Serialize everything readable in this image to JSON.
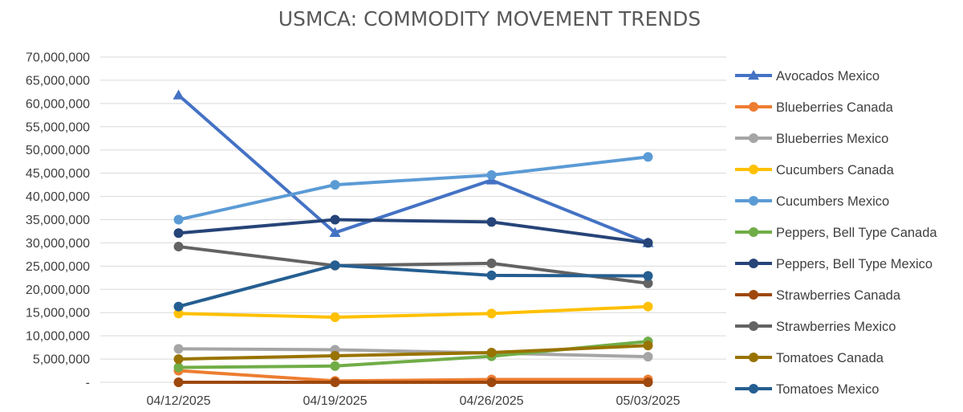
{
  "chart_data": {
    "type": "line",
    "title": "USMCA: COMMODITY MOVEMENT TRENDS",
    "xlabel": "",
    "ylabel": "",
    "categories": [
      "04/12/2025",
      "04/19/2025",
      "04/26/2025",
      "05/03/2025"
    ],
    "ylim": [
      0,
      70000000
    ],
    "y_ticks": [
      {
        "value": 0,
        "label": "-"
      },
      {
        "value": 5000000,
        "label": "5,000,000"
      },
      {
        "value": 10000000,
        "label": "10,000,000"
      },
      {
        "value": 15000000,
        "label": "15,000,000"
      },
      {
        "value": 20000000,
        "label": "20,000,000"
      },
      {
        "value": 25000000,
        "label": "25,000,000"
      },
      {
        "value": 30000000,
        "label": "30,000,000"
      },
      {
        "value": 35000000,
        "label": "35,000,000"
      },
      {
        "value": 40000000,
        "label": "40,000,000"
      },
      {
        "value": 45000000,
        "label": "45,000,000"
      },
      {
        "value": 50000000,
        "label": "50,000,000"
      },
      {
        "value": 55000000,
        "label": "55,000,000"
      },
      {
        "value": 60000000,
        "label": "60,000,000"
      },
      {
        "value": 65000000,
        "label": "65,000,000"
      },
      {
        "value": 70000000,
        "label": "70,000,000"
      }
    ],
    "grid": true,
    "legend_position": "right",
    "series": [
      {
        "name": "Avocados Mexico",
        "color": "#4472c4",
        "marker": "triangle",
        "values": [
          61800000,
          32200000,
          43500000,
          30000000
        ]
      },
      {
        "name": "Blueberries Canada",
        "color": "#ed7d31",
        "marker": "circle",
        "values": [
          2500000,
          300000,
          600000,
          600000
        ]
      },
      {
        "name": "Blueberries Mexico",
        "color": "#a5a5a5",
        "marker": "circle",
        "values": [
          7200000,
          7000000,
          6300000,
          5500000
        ]
      },
      {
        "name": "Cucumbers Canada",
        "color": "#ffc000",
        "marker": "circle",
        "values": [
          14800000,
          14000000,
          14800000,
          16300000
        ]
      },
      {
        "name": "Cucumbers Mexico",
        "color": "#5b9bd5",
        "marker": "circle",
        "values": [
          35000000,
          42500000,
          44600000,
          48500000
        ]
      },
      {
        "name": "Peppers, Bell Type Canada",
        "color": "#70ad47",
        "marker": "circle",
        "values": [
          3200000,
          3500000,
          5600000,
          8800000
        ]
      },
      {
        "name": "Peppers, Bell Type Mexico",
        "color": "#264478",
        "marker": "circle",
        "values": [
          32100000,
          35000000,
          34500000,
          30000000
        ]
      },
      {
        "name": "Strawberries Canada",
        "color": "#9e480e",
        "marker": "circle",
        "values": [
          0,
          0,
          0,
          0
        ]
      },
      {
        "name": "Strawberries Mexico",
        "color": "#636363",
        "marker": "circle",
        "values": [
          29200000,
          25100000,
          25600000,
          21300000
        ]
      },
      {
        "name": "Tomatoes Canada",
        "color": "#997300",
        "marker": "circle",
        "values": [
          5000000,
          5700000,
          6400000,
          7900000
        ]
      },
      {
        "name": "Tomatoes Mexico",
        "color": "#255e91",
        "marker": "circle",
        "values": [
          16300000,
          25200000,
          23000000,
          22900000
        ]
      }
    ]
  }
}
